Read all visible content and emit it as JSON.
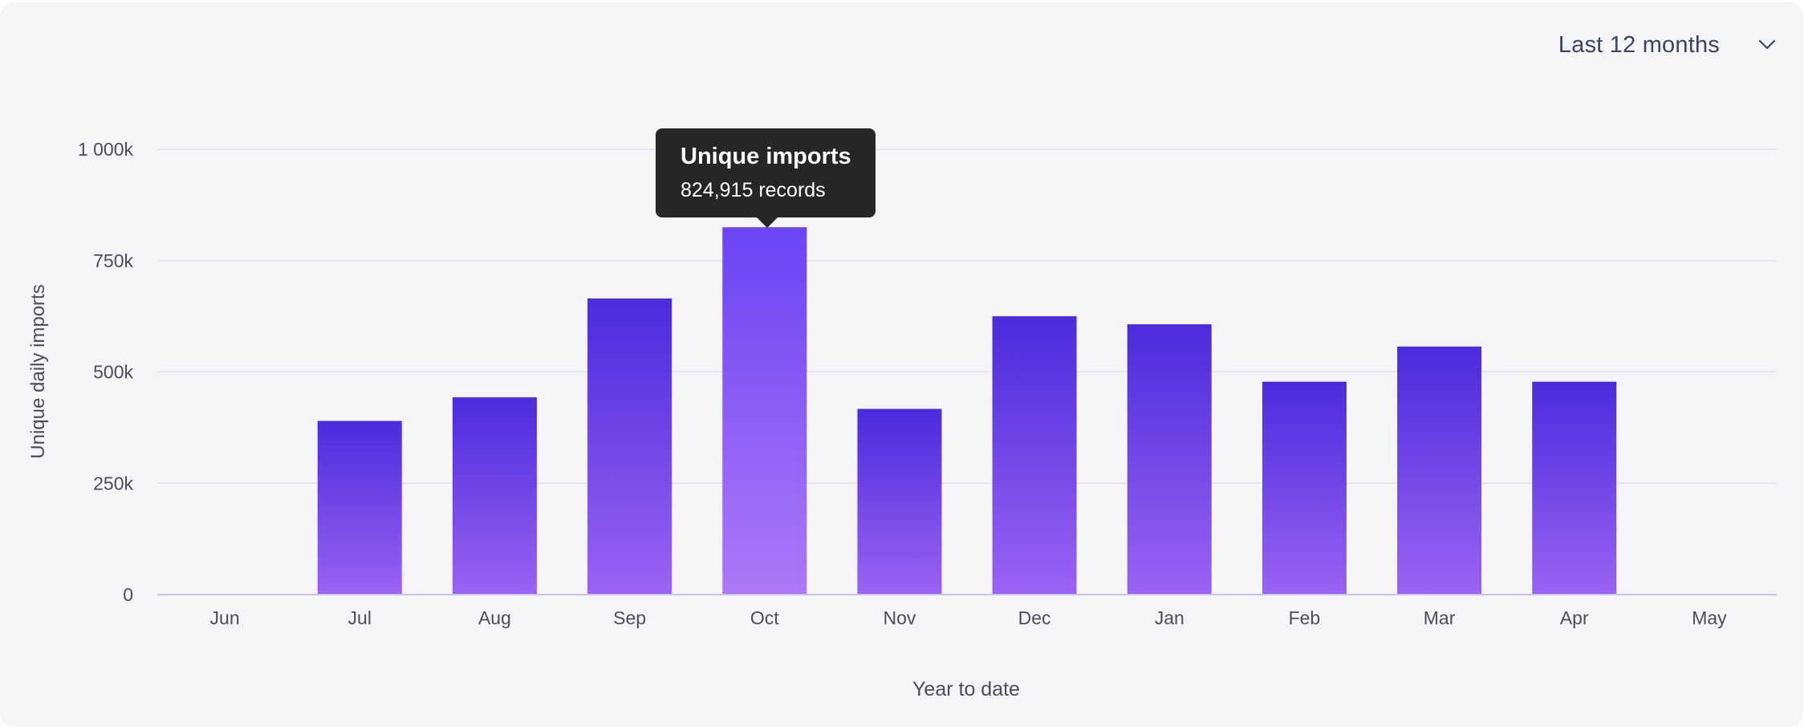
{
  "controls": {
    "range_label": "Last 12 months"
  },
  "tooltip": {
    "title": "Unique imports",
    "value": "824,915 records"
  },
  "colors": {
    "bar_top": "#4b2bdc",
    "bar_bottom": "#9a63f4",
    "bar_highlight_top": "#6b44f4",
    "bar_highlight_bottom": "#ac78f8",
    "grid": "#e1e1e8",
    "axis": "#c7c5ee",
    "tick_text": "#4a4d5a"
  },
  "chart_data": {
    "type": "bar",
    "title": "",
    "xlabel": "Year to date",
    "ylabel": "Unique daily imports",
    "categories": [
      "Jun",
      "Jul",
      "Aug",
      "Sep",
      "Oct",
      "Nov",
      "Dec",
      "Jan",
      "Feb",
      "Mar",
      "Apr",
      "May"
    ],
    "values": [
      0,
      390000,
      443000,
      665000,
      824915,
      417000,
      625000,
      607000,
      478000,
      557000,
      478000,
      0
    ],
    "highlighted": "Oct",
    "ylim": [
      0,
      1000000
    ],
    "yticks": [
      0,
      250000,
      500000,
      750000,
      1000000
    ],
    "ytick_labels": [
      "0",
      "250k",
      "500k",
      "750k",
      "1 000k"
    ],
    "grid": true
  }
}
